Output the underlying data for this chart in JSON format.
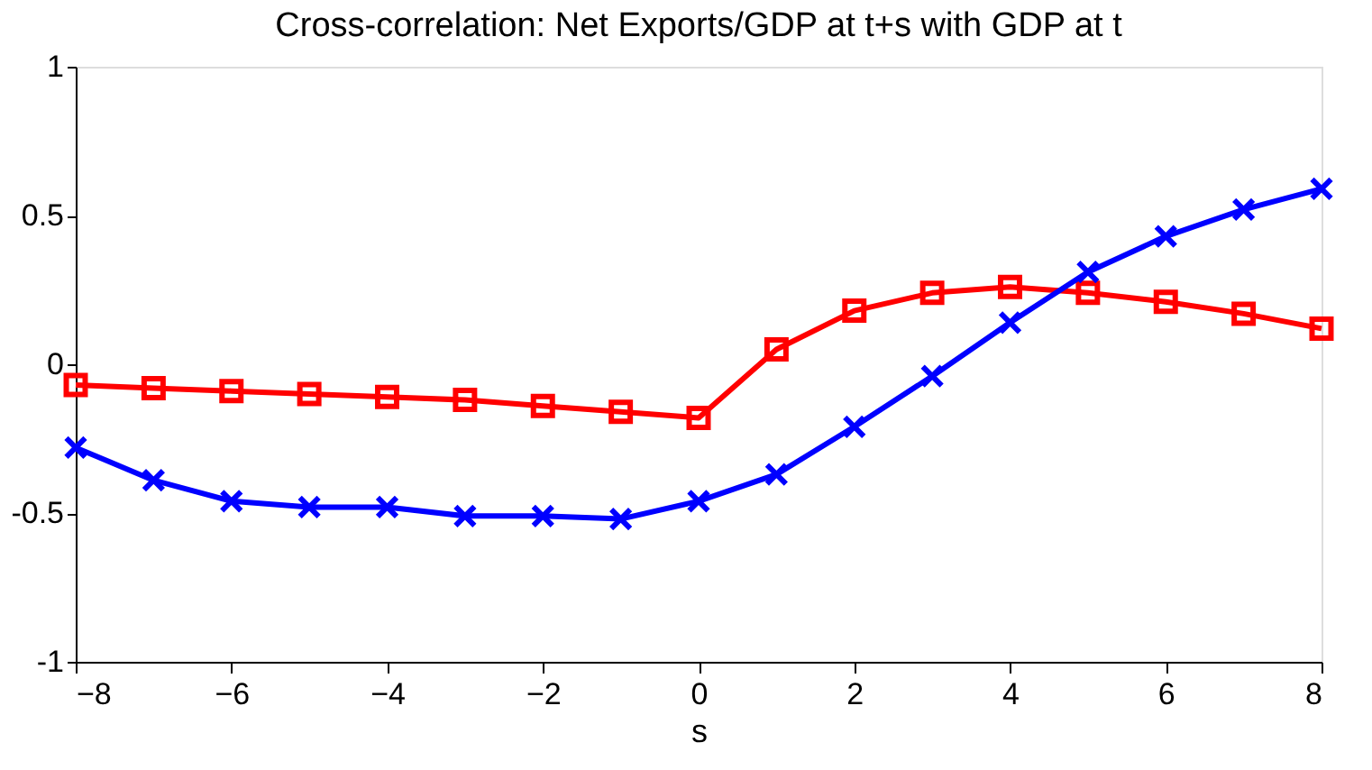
{
  "chart_data": {
    "type": "line",
    "title": "Cross-correlation: Net Exports/GDP at t+s with GDP at t",
    "xlabel": "s",
    "x": [
      -8,
      -7,
      -6,
      -5,
      -4,
      -3,
      -2,
      -1,
      0,
      1,
      2,
      3,
      4,
      5,
      6,
      7,
      8
    ],
    "series": [
      {
        "color": "#ff0000",
        "marker": "square",
        "values": [
          -0.07,
          -0.08,
          -0.09,
          -0.1,
          -0.11,
          -0.12,
          -0.14,
          -0.16,
          -0.18,
          0.05,
          0.18,
          0.24,
          0.26,
          0.24,
          0.21,
          0.17,
          0.12
        ]
      },
      {
        "color": "#0000ff",
        "marker": "cross",
        "values": [
          -0.28,
          -0.39,
          -0.46,
          -0.48,
          -0.48,
          -0.51,
          -0.51,
          -0.52,
          -0.46,
          -0.37,
          -0.21,
          -0.04,
          0.14,
          0.31,
          0.43,
          0.52,
          0.59
        ]
      }
    ],
    "xlim": [
      -8,
      8
    ],
    "xticks": [
      -8,
      -6,
      -4,
      -2,
      0,
      2,
      4,
      6,
      8
    ],
    "ylim": [
      -1,
      1
    ],
    "yticks": [
      -1,
      -0.5,
      0,
      0.5,
      1
    ],
    "grid": false,
    "line_style": "solid"
  }
}
